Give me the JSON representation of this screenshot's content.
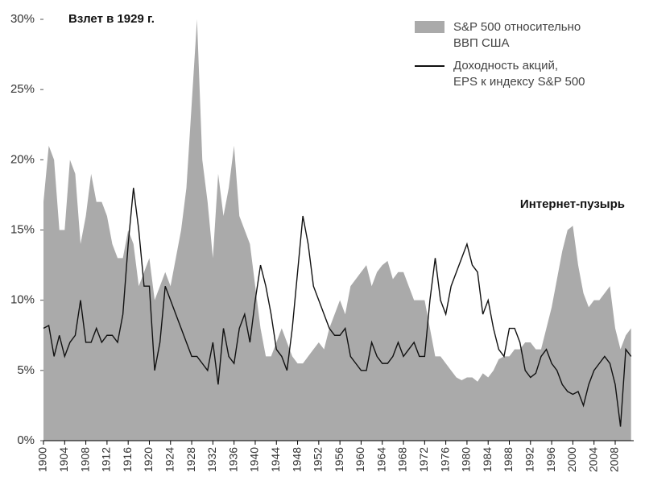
{
  "chart_data": {
    "type": "area_line",
    "annotations": [
      "Взлет в 1929 г.",
      "Интернет-пузырь"
    ],
    "x": [
      1900,
      1901,
      1902,
      1903,
      1904,
      1905,
      1906,
      1907,
      1908,
      1909,
      1910,
      1911,
      1912,
      1913,
      1914,
      1915,
      1916,
      1917,
      1918,
      1919,
      1920,
      1921,
      1922,
      1923,
      1924,
      1925,
      1926,
      1927,
      1928,
      1929,
      1930,
      1931,
      1932,
      1933,
      1934,
      1935,
      1936,
      1937,
      1938,
      1939,
      1940,
      1941,
      1942,
      1943,
      1944,
      1945,
      1946,
      1947,
      1948,
      1949,
      1950,
      1951,
      1952,
      1953,
      1954,
      1955,
      1956,
      1957,
      1958,
      1959,
      1960,
      1961,
      1962,
      1963,
      1964,
      1965,
      1966,
      1967,
      1968,
      1969,
      1970,
      1971,
      1972,
      1973,
      1974,
      1975,
      1976,
      1977,
      1978,
      1979,
      1980,
      1981,
      1982,
      1983,
      1984,
      1985,
      1986,
      1987,
      1988,
      1989,
      1990,
      1991,
      1992,
      1993,
      1994,
      1995,
      1996,
      1997,
      1998,
      1999,
      2000,
      2001,
      2002,
      2003,
      2004,
      2005,
      2006,
      2007,
      2008,
      2009,
      2010,
      2011
    ],
    "series": [
      {
        "name": "S&P 500 относительно\nВВП США",
        "kind": "area",
        "color": "#aaaaaa",
        "values": [
          17,
          21,
          20,
          15,
          15,
          20,
          19,
          14,
          16,
          19,
          17,
          17,
          16,
          14,
          13,
          13,
          15,
          14,
          11,
          12,
          13,
          10,
          11,
          12,
          11,
          13,
          15,
          18,
          24,
          30,
          20,
          17,
          13,
          19,
          16,
          18,
          21,
          16,
          15,
          14,
          11,
          8,
          6,
          6,
          7,
          8,
          7,
          6,
          5.5,
          5.5,
          6,
          6.5,
          7,
          6.5,
          8,
          9,
          10,
          9,
          11,
          11.5,
          12,
          12.5,
          11,
          12,
          12.5,
          12.8,
          11.5,
          12,
          12,
          11,
          10,
          10,
          10,
          8,
          6,
          6,
          5.5,
          5,
          4.5,
          4.3,
          4.5,
          4.5,
          4.2,
          4.8,
          4.5,
          5,
          5.8,
          6,
          6,
          6.5,
          6.5,
          7,
          7,
          6.5,
          6.5,
          8,
          9.5,
          11.5,
          13.5,
          15,
          15.3,
          12.5,
          10.5,
          9.5,
          10,
          10,
          10.5,
          11,
          8,
          6.5,
          7.5,
          8
        ]
      },
      {
        "name": "Доходность акций,\nEPS к индексу S&P 500",
        "kind": "line",
        "color": "#111111",
        "values": [
          8,
          8.2,
          6,
          7.5,
          6,
          7,
          7.5,
          10,
          7,
          7,
          8,
          7,
          7.5,
          7.5,
          7,
          9,
          14,
          18,
          15,
          11,
          11,
          5,
          7,
          11,
          10,
          9,
          8,
          7,
          6,
          6,
          5.5,
          5,
          7,
          4,
          8,
          6,
          5.5,
          8,
          9,
          7,
          10,
          12.5,
          11,
          9,
          6.5,
          6,
          5,
          8,
          12,
          16,
          14,
          11,
          10,
          9,
          8,
          7.5,
          7.5,
          8,
          6,
          5.5,
          5,
          5,
          7,
          6,
          5.5,
          5.5,
          6,
          7,
          6,
          6.5,
          7,
          6,
          6,
          10,
          13,
          10,
          9,
          11,
          12,
          13,
          14,
          12.5,
          12,
          9,
          10,
          8,
          6.5,
          6,
          8,
          8,
          7,
          5,
          4.5,
          4.8,
          6,
          6.5,
          5.5,
          5,
          4,
          3.5,
          3.3,
          3.5,
          2.5,
          4,
          5,
          5.5,
          6,
          5.5,
          4,
          1,
          6.5,
          6
        ]
      }
    ],
    "xlim": [
      1900,
      2011.5
    ],
    "xticks": [
      1900,
      1904,
      1908,
      1912,
      1916,
      1920,
      1924,
      1928,
      1932,
      1936,
      1940,
      1944,
      1948,
      1952,
      1956,
      1960,
      1964,
      1968,
      1972,
      1976,
      1980,
      1984,
      1988,
      1992,
      1996,
      2000,
      2004,
      2008
    ],
    "ylim": [
      0,
      30
    ],
    "yticks": [
      {
        "value": 0,
        "label": "0%"
      },
      {
        "value": 5,
        "label": "5%"
      },
      {
        "value": 10,
        "label": "10%"
      },
      {
        "value": 15,
        "label": "15%"
      },
      {
        "value": 20,
        "label": "20%"
      },
      {
        "value": 25,
        "label": "25%"
      },
      {
        "value": 30,
        "label": "30%"
      }
    ]
  }
}
